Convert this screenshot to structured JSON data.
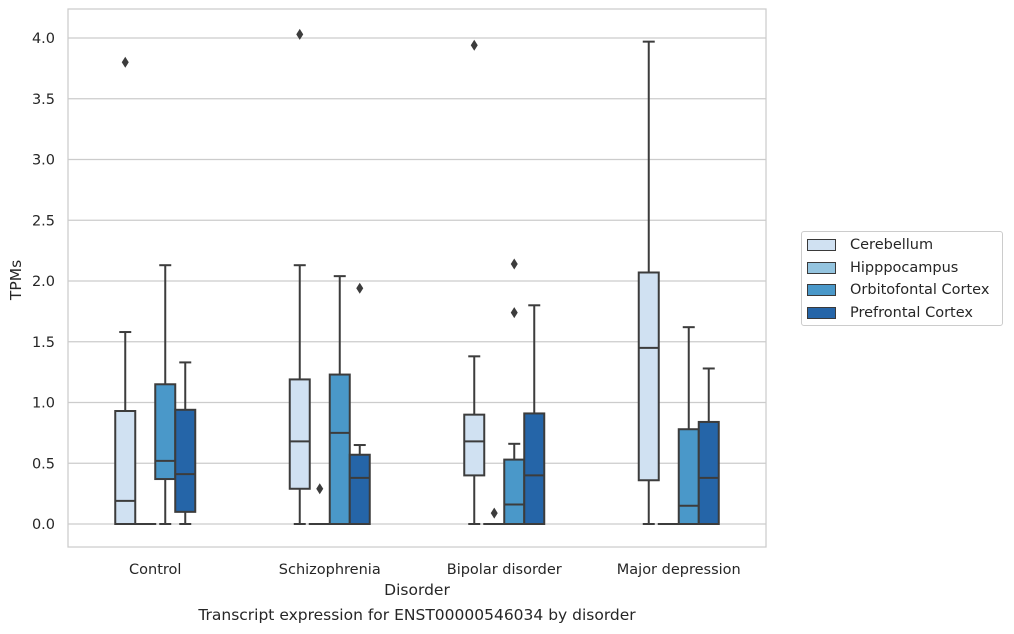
{
  "caption": "Transcript expression for ENST00000546034 by disorder",
  "chart_data": {
    "type": "boxplot",
    "xlabel": "Disorder",
    "ylabel": "TPMs",
    "ylim": [
      -0.2,
      4.25
    ],
    "yticks": [
      0.0,
      0.5,
      1.0,
      1.5,
      2.0,
      2.5,
      3.0,
      3.5,
      4.0
    ],
    "ytick_labels": [
      "0.0",
      "0.5",
      "1.0",
      "1.5",
      "2.0",
      "2.5",
      "3.0",
      "3.5",
      "4.0"
    ],
    "grid": "horizontal",
    "legend_position": "right",
    "categories": [
      "Control",
      "Schizophrenia",
      "Bipolar disorder",
      "Major depression"
    ],
    "series": [
      {
        "name": "Cerebellum",
        "color": "#d0e1f2",
        "boxes": [
          {
            "whislo": 0.0,
            "q1": 0.0,
            "med": 0.19,
            "q3": 0.93,
            "whishi": 1.58,
            "fliers": [
              3.8
            ]
          },
          {
            "whislo": 0.0,
            "q1": 0.29,
            "med": 0.68,
            "q3": 1.19,
            "whishi": 2.13,
            "fliers": [
              4.03
            ]
          },
          {
            "whislo": 0.0,
            "q1": 0.4,
            "med": 0.68,
            "q3": 0.9,
            "whishi": 1.38,
            "fliers": [
              3.94
            ]
          },
          {
            "whislo": 0.0,
            "q1": 0.36,
            "med": 1.45,
            "q3": 2.07,
            "whishi": 3.97,
            "fliers": []
          }
        ]
      },
      {
        "name": "Hipppocampus",
        "color": "#94c4df",
        "boxes": [
          {
            "whislo": 0.0,
            "q1": 0.0,
            "med": 0.0,
            "q3": 0.0,
            "whishi": 0.0,
            "fliers": []
          },
          {
            "whislo": 0.0,
            "q1": 0.0,
            "med": 0.0,
            "q3": 0.0,
            "whishi": 0.0,
            "fliers": [
              0.29
            ]
          },
          {
            "whislo": 0.0,
            "q1": 0.0,
            "med": 0.0,
            "q3": 0.0,
            "whishi": 0.0,
            "fliers": [
              0.09
            ]
          },
          {
            "whislo": 0.0,
            "q1": 0.0,
            "med": 0.0,
            "q3": 0.0,
            "whishi": 0.0,
            "fliers": []
          }
        ]
      },
      {
        "name": "Orbitofontal Cortex",
        "color": "#4a98c9",
        "boxes": [
          {
            "whislo": 0.0,
            "q1": 0.37,
            "med": 0.52,
            "q3": 1.15,
            "whishi": 2.13,
            "fliers": []
          },
          {
            "whislo": 0.0,
            "q1": 0.0,
            "med": 0.75,
            "q3": 1.23,
            "whishi": 2.04,
            "fliers": []
          },
          {
            "whislo": 0.0,
            "q1": 0.0,
            "med": 0.16,
            "q3": 0.53,
            "whishi": 0.66,
            "fliers": [
              1.74,
              2.14
            ]
          },
          {
            "whislo": 0.0,
            "q1": 0.0,
            "med": 0.15,
            "q3": 0.78,
            "whishi": 1.62,
            "fliers": []
          }
        ]
      },
      {
        "name": "Prefrontal Cortex",
        "color": "#2565a8",
        "boxes": [
          {
            "whislo": 0.0,
            "q1": 0.1,
            "med": 0.41,
            "q3": 0.94,
            "whishi": 1.33,
            "fliers": []
          },
          {
            "whislo": 0.0,
            "q1": 0.0,
            "med": 0.38,
            "q3": 0.57,
            "whishi": 0.65,
            "fliers": [
              1.94
            ]
          },
          {
            "whislo": 0.0,
            "q1": 0.0,
            "med": 0.4,
            "q3": 0.91,
            "whishi": 1.8,
            "fliers": []
          },
          {
            "whislo": 0.0,
            "q1": 0.0,
            "med": 0.38,
            "q3": 0.84,
            "whishi": 1.28,
            "fliers": []
          }
        ]
      }
    ]
  }
}
